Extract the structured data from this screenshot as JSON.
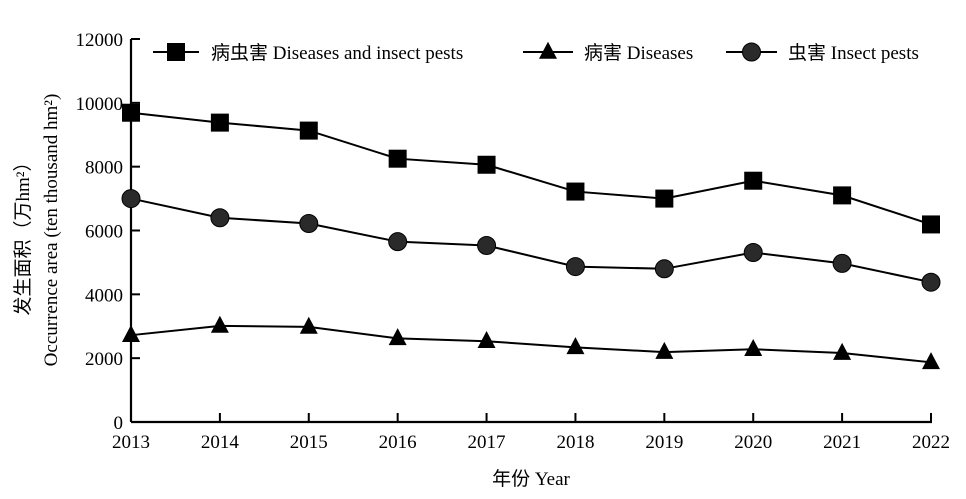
{
  "chart_data": {
    "type": "line",
    "title": "",
    "xlabel": "年份 Year",
    "ylabel_cn": "发生面积（万hm²）",
    "ylabel_en": "Occurrence area (ten thousand hm²)",
    "x": [
      "2013",
      "2014",
      "2015",
      "2016",
      "2017",
      "2018",
      "2019",
      "2020",
      "2021",
      "2022"
    ],
    "ylim": [
      0,
      12000
    ],
    "yticks": [
      "0",
      "2000",
      "4000",
      "6000",
      "8000",
      "10000",
      "12000"
    ],
    "ytick_values": [
      0,
      2000,
      4000,
      6000,
      8000,
      10000,
      12000
    ],
    "grid": false,
    "legend_position": "top",
    "series": [
      {
        "name": "病虫害 Diseases and insect pests",
        "marker": "square",
        "values": [
          9690,
          9380,
          9130,
          8250,
          8060,
          7220,
          7000,
          7560,
          7100,
          6190
        ]
      },
      {
        "name": "病害 Diseases",
        "marker": "triangle",
        "values": [
          2720,
          3010,
          2980,
          2620,
          2530,
          2340,
          2190,
          2280,
          2160,
          1870
        ]
      },
      {
        "name": "虫害 Insect pests",
        "marker": "circle",
        "values": [
          7000,
          6400,
          6220,
          5650,
          5530,
          4870,
          4800,
          5310,
          4970,
          4380
        ]
      }
    ],
    "colors": {
      "line": "#000000",
      "square_fill": "#000000",
      "triangle_fill": "#000000",
      "circle_fill": "#2a2a2a"
    }
  }
}
